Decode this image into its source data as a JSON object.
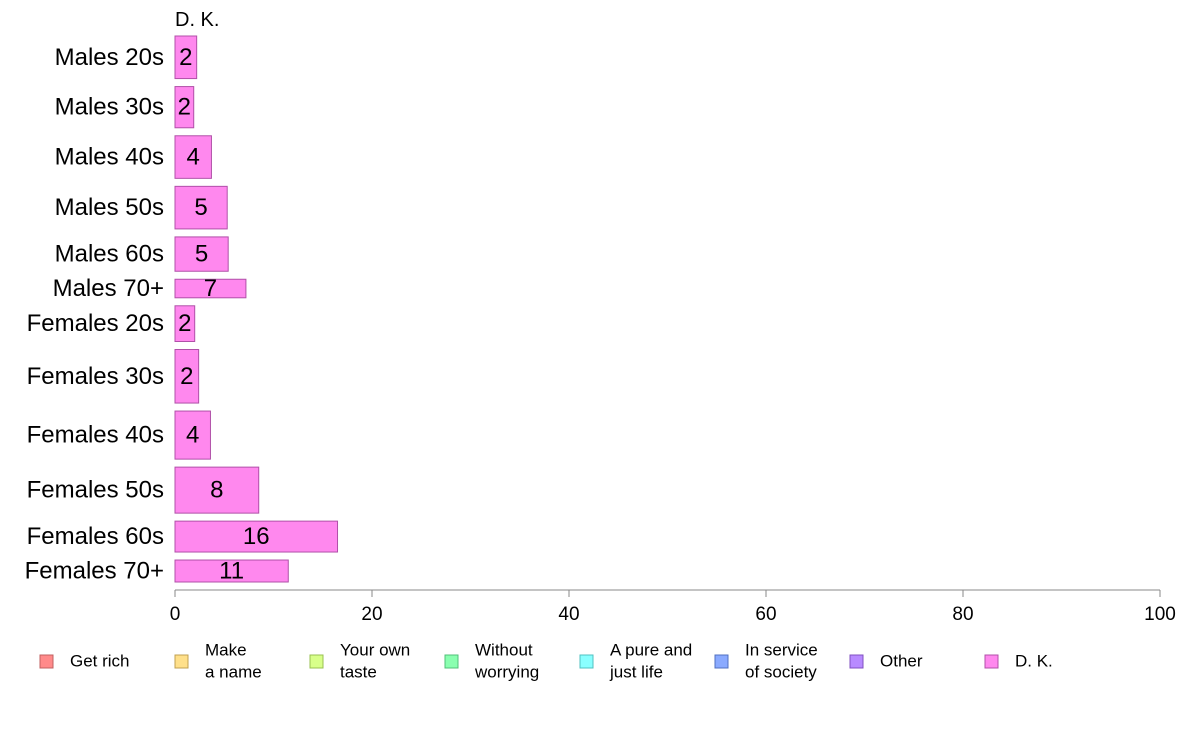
{
  "chart_data": {
    "type": "bar",
    "orientation": "horizontal",
    "panel_title": "D. K.",
    "categories": [
      "Males 20s",
      "Males 30s",
      "Males 40s",
      "Males 50s",
      "Males 60s",
      "Males 70+",
      "Females 20s",
      "Females 30s",
      "Females 40s",
      "Females 50s",
      "Females 60s",
      "Females 70+"
    ],
    "series": [
      {
        "name": "D. K.",
        "values": [
          2,
          2,
          4,
          5,
          5,
          7,
          2,
          2,
          4,
          8,
          16,
          11
        ],
        "exact_values": [
          2.2,
          1.9,
          3.7,
          5.3,
          5.4,
          7.2,
          2.0,
          2.4,
          3.6,
          8.5,
          16.5,
          11.5
        ]
      }
    ],
    "value_labels": [
      "2",
      "2",
      "4",
      "5",
      "5",
      "7",
      "2",
      "2",
      "4",
      "8",
      "16",
      "11"
    ],
    "relative_bar_weights": [
      0.62,
      0.6,
      0.62,
      0.62,
      0.5,
      0.27,
      0.52,
      0.78,
      0.7,
      0.67,
      0.45,
      0.32
    ],
    "xlim": [
      0,
      100
    ],
    "x_ticks": [
      0,
      20,
      40,
      60,
      80,
      100
    ],
    "x_tick_labels": [
      "0",
      "20",
      "40",
      "60",
      "80",
      "100"
    ],
    "xlabel": "",
    "ylabel": "",
    "grid": false,
    "bar_color": "#ff88ee",
    "bar_border_color": "#b050a8",
    "legend": {
      "position": "bottom",
      "items": [
        {
          "label": [
            "Get rich"
          ],
          "color": "#ff8a8a",
          "border": "#c06060"
        },
        {
          "label": [
            "Make",
            "a name"
          ],
          "color": "#ffe08a",
          "border": "#c0a050"
        },
        {
          "label": [
            "Your own",
            "taste"
          ],
          "color": "#d8ff8a",
          "border": "#98c050"
        },
        {
          "label": [
            "Without",
            "worrying"
          ],
          "color": "#8affb0",
          "border": "#50c078"
        },
        {
          "label": [
            "A pure and",
            "just life"
          ],
          "color": "#8affff",
          "border": "#50c0c0"
        },
        {
          "label": [
            "In service",
            "of society"
          ],
          "color": "#8aaaff",
          "border": "#5070c0"
        },
        {
          "label": [
            "Other"
          ],
          "color": "#b88aff",
          "border": "#8050c0"
        },
        {
          "label": [
            "D. K."
          ],
          "color": "#ff88ee",
          "border": "#b050a8"
        }
      ]
    }
  }
}
